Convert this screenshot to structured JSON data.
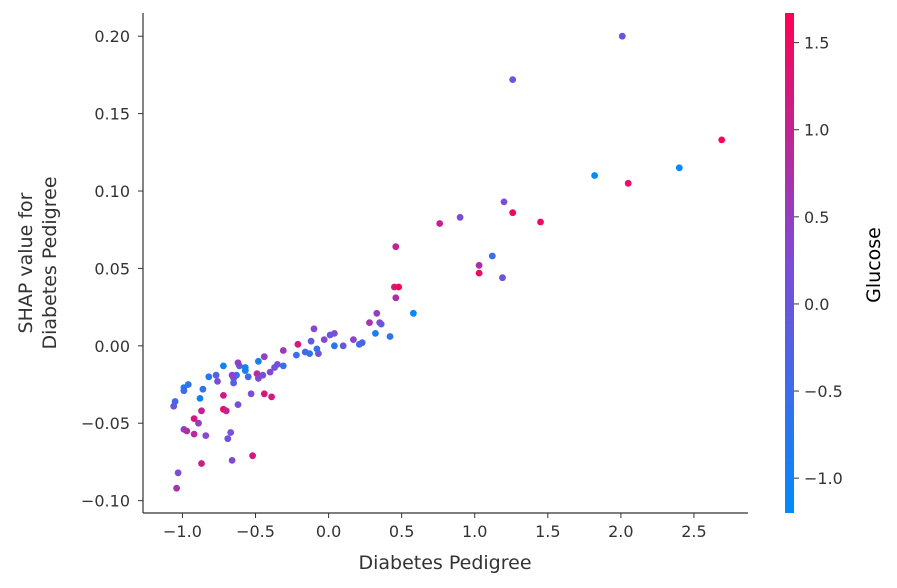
{
  "chart_data": {
    "type": "scatter",
    "title": "",
    "xlabel": "Diabetes Pedigree",
    "ylabel_lines": [
      "SHAP value for",
      "Diabetes Pedigree"
    ],
    "xlim": [
      -1.27,
      2.87
    ],
    "ylim": [
      -0.108,
      0.215
    ],
    "x_ticks": [
      -1.0,
      -0.5,
      0.0,
      0.5,
      1.0,
      1.5,
      2.0,
      2.5
    ],
    "x_tick_labels": [
      "−1.0",
      "−0.5",
      "0.0",
      "0.5",
      "1.0",
      "1.5",
      "2.0",
      "2.5"
    ],
    "y_ticks": [
      -0.1,
      -0.05,
      0.0,
      0.05,
      0.1,
      0.15,
      0.2
    ],
    "y_tick_labels": [
      "−0.10",
      "−0.05",
      "0.00",
      "0.05",
      "0.10",
      "0.15",
      "0.20"
    ],
    "grid": false,
    "colorbar": {
      "label": "Glucose",
      "range": [
        -1.2,
        1.67
      ],
      "ticks": [
        -1.0,
        -0.5,
        0.0,
        0.5,
        1.0,
        1.5
      ],
      "tick_labels": [
        "−1.0",
        "−0.5",
        "0.0",
        "0.5",
        "1.0",
        "1.5"
      ],
      "colors": [
        "#008bfb",
        "#7d4cd8",
        "#ff0052"
      ]
    },
    "points": [
      {
        "x": 2.01,
        "y": 0.2,
        "c": 0.0
      },
      {
        "x": 1.26,
        "y": 0.172,
        "c": 0.0
      },
      {
        "x": 2.69,
        "y": 0.133,
        "c": 1.6
      },
      {
        "x": 2.4,
        "y": 0.115,
        "c": -1.2
      },
      {
        "x": 1.82,
        "y": 0.11,
        "c": -1.2
      },
      {
        "x": 2.05,
        "y": 0.105,
        "c": 1.4
      },
      {
        "x": 1.2,
        "y": 0.093,
        "c": 0.2
      },
      {
        "x": 1.26,
        "y": 0.086,
        "c": 1.5
      },
      {
        "x": 0.9,
        "y": 0.083,
        "c": 0.2
      },
      {
        "x": 1.45,
        "y": 0.08,
        "c": 1.5
      },
      {
        "x": 0.76,
        "y": 0.079,
        "c": 1.0
      },
      {
        "x": 0.46,
        "y": 0.064,
        "c": 1.0
      },
      {
        "x": 1.12,
        "y": 0.058,
        "c": -0.5
      },
      {
        "x": 1.03,
        "y": 0.052,
        "c": 0.8
      },
      {
        "x": 1.03,
        "y": 0.047,
        "c": 1.5
      },
      {
        "x": 1.19,
        "y": 0.044,
        "c": 0.1
      },
      {
        "x": 0.45,
        "y": 0.038,
        "c": 1.3
      },
      {
        "x": 0.48,
        "y": 0.038,
        "c": 1.6
      },
      {
        "x": 0.46,
        "y": 0.031,
        "c": 0.8
      },
      {
        "x": 0.58,
        "y": 0.021,
        "c": -1.1
      },
      {
        "x": 0.35,
        "y": 0.015,
        "c": 0.3
      },
      {
        "x": 0.33,
        "y": 0.021,
        "c": 0.5
      },
      {
        "x": 0.36,
        "y": 0.014,
        "c": 0.0
      },
      {
        "x": 0.28,
        "y": 0.015,
        "c": 0.7
      },
      {
        "x": 0.32,
        "y": 0.008,
        "c": -0.9
      },
      {
        "x": 0.42,
        "y": 0.006,
        "c": -0.7
      },
      {
        "x": 0.21,
        "y": 0.001,
        "c": -0.5
      },
      {
        "x": 0.23,
        "y": 0.002,
        "c": -0.3
      },
      {
        "x": 0.17,
        "y": 0.004,
        "c": 0.4
      },
      {
        "x": 0.04,
        "y": 0.008,
        "c": 0.2
      },
      {
        "x": 0.01,
        "y": 0.007,
        "c": 0.0
      },
      {
        "x": 0.04,
        "y": 0.0,
        "c": -0.8
      },
      {
        "x": 0.1,
        "y": 0.0,
        "c": 0.0
      },
      {
        "x": -0.03,
        "y": 0.004,
        "c": 0.3
      },
      {
        "x": -0.1,
        "y": 0.011,
        "c": 0.3
      },
      {
        "x": -0.12,
        "y": 0.003,
        "c": -0.1
      },
      {
        "x": -0.07,
        "y": -0.005,
        "c": 0.1
      },
      {
        "x": -0.08,
        "y": -0.002,
        "c": -0.6
      },
      {
        "x": -0.13,
        "y": -0.005,
        "c": -0.7
      },
      {
        "x": -0.16,
        "y": -0.004,
        "c": -0.4
      },
      {
        "x": -0.21,
        "y": 0.001,
        "c": 1.2
      },
      {
        "x": -0.22,
        "y": -0.006,
        "c": -0.5
      },
      {
        "x": -0.31,
        "y": -0.003,
        "c": 0.6
      },
      {
        "x": -0.31,
        "y": -0.013,
        "c": -0.6
      },
      {
        "x": -0.35,
        "y": -0.012,
        "c": 0.2
      },
      {
        "x": -0.37,
        "y": -0.014,
        "c": 0.1
      },
      {
        "x": -0.4,
        "y": -0.017,
        "c": 0.3
      },
      {
        "x": -0.44,
        "y": -0.007,
        "c": 0.5
      },
      {
        "x": -0.45,
        "y": -0.019,
        "c": 0.1
      },
      {
        "x": -0.48,
        "y": -0.01,
        "c": -0.9
      },
      {
        "x": -0.49,
        "y": -0.018,
        "c": 0.8
      },
      {
        "x": -0.48,
        "y": -0.021,
        "c": 0.3
      },
      {
        "x": -0.53,
        "y": -0.031,
        "c": 0.2
      },
      {
        "x": -0.39,
        "y": -0.033,
        "c": 1.2
      },
      {
        "x": -0.44,
        "y": -0.031,
        "c": 1.3
      },
      {
        "x": -0.55,
        "y": -0.02,
        "c": -0.4
      },
      {
        "x": -0.57,
        "y": -0.016,
        "c": -0.9
      },
      {
        "x": -0.57,
        "y": -0.014,
        "c": -1.0
      },
      {
        "x": -0.61,
        "y": -0.013,
        "c": -0.3
      },
      {
        "x": -0.62,
        "y": -0.011,
        "c": 0.5
      },
      {
        "x": -0.63,
        "y": -0.019,
        "c": -0.6
      },
      {
        "x": -0.65,
        "y": -0.021,
        "c": 0.1
      },
      {
        "x": -0.65,
        "y": -0.024,
        "c": -0.2
      },
      {
        "x": -0.66,
        "y": -0.019,
        "c": 0.4
      },
      {
        "x": -0.72,
        "y": -0.013,
        "c": -1.0
      },
      {
        "x": -0.77,
        "y": -0.019,
        "c": -0.2
      },
      {
        "x": -0.76,
        "y": -0.023,
        "c": 0.2
      },
      {
        "x": -0.82,
        "y": -0.02,
        "c": -0.8
      },
      {
        "x": -0.62,
        "y": -0.038,
        "c": 0.2
      },
      {
        "x": -0.72,
        "y": -0.032,
        "c": 1.2
      },
      {
        "x": -0.72,
        "y": -0.041,
        "c": 1.4
      },
      {
        "x": -0.7,
        "y": -0.042,
        "c": 1.0
      },
      {
        "x": -0.86,
        "y": -0.028,
        "c": -0.6
      },
      {
        "x": -0.88,
        "y": -0.034,
        "c": -1.0
      },
      {
        "x": -0.96,
        "y": -0.025,
        "c": -0.6
      },
      {
        "x": -0.99,
        "y": -0.027,
        "c": -0.8
      },
      {
        "x": -0.99,
        "y": -0.029,
        "c": -0.5
      },
      {
        "x": -1.05,
        "y": -0.036,
        "c": -0.5
      },
      {
        "x": -1.06,
        "y": -0.039,
        "c": 0.0
      },
      {
        "x": -0.87,
        "y": -0.042,
        "c": 1.0
      },
      {
        "x": -0.89,
        "y": -0.05,
        "c": 0.5
      },
      {
        "x": -0.92,
        "y": -0.047,
        "c": 1.2
      },
      {
        "x": -0.99,
        "y": -0.054,
        "c": 0.4
      },
      {
        "x": -0.97,
        "y": -0.055,
        "c": 0.8
      },
      {
        "x": -0.92,
        "y": -0.057,
        "c": 0.9
      },
      {
        "x": -0.84,
        "y": -0.058,
        "c": 0.3
      },
      {
        "x": -0.67,
        "y": -0.056,
        "c": 0.2
      },
      {
        "x": -0.69,
        "y": -0.06,
        "c": 0.1
      },
      {
        "x": -0.52,
        "y": -0.071,
        "c": 1.2
      },
      {
        "x": -0.66,
        "y": -0.074,
        "c": 0.3
      },
      {
        "x": -0.87,
        "y": -0.076,
        "c": 1.1
      },
      {
        "x": -1.03,
        "y": -0.082,
        "c": 0.2
      },
      {
        "x": -1.04,
        "y": -0.092,
        "c": 0.7
      }
    ]
  }
}
